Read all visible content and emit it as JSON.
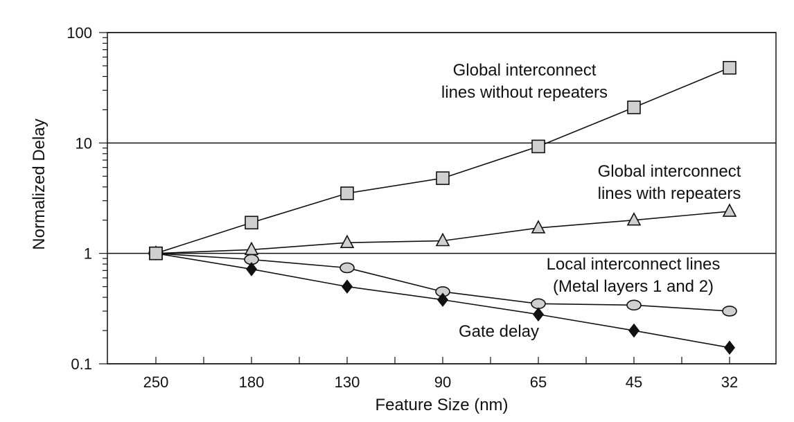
{
  "chart_data": {
    "type": "line",
    "title": "",
    "xlabel": "Feature Size (nm)",
    "ylabel": "Normalized Delay",
    "yscale": "log",
    "ylim": [
      0.1,
      100
    ],
    "grid": "horizontal major gridlines at decades",
    "categories": [
      "250",
      "180",
      "130",
      "90",
      "65",
      "45",
      "32"
    ],
    "y_tick_labels": [
      "0.1",
      "1",
      "10",
      "100"
    ],
    "series": [
      {
        "name": "Global interconnect lines without repeaters",
        "marker": "square",
        "color": "#d0d0d0",
        "values": [
          1,
          1.9,
          3.5,
          4.8,
          9.3,
          21,
          48
        ]
      },
      {
        "name": "Global interconnect lines with repeaters",
        "marker": "triangle",
        "color": "#d0d0d0",
        "values": [
          1,
          1.08,
          1.25,
          1.3,
          1.7,
          2.0,
          2.4
        ]
      },
      {
        "name": "Local interconnect lines (Metal layers 1 and 2)",
        "marker": "ellipse",
        "color": "#d0d0d0",
        "values": [
          1,
          0.88,
          0.74,
          0.45,
          0.35,
          0.34,
          0.3
        ]
      },
      {
        "name": "Gate delay",
        "marker": "diamond",
        "color": "#111111",
        "values": [
          1,
          0.72,
          0.5,
          0.38,
          0.28,
          0.2,
          0.14
        ]
      }
    ],
    "annotations": [
      {
        "series": 0,
        "lines": [
          "Global interconnect",
          "lines without repeaters"
        ]
      },
      {
        "series": 1,
        "lines": [
          "Global interconnect",
          "lines with repeaters"
        ]
      },
      {
        "series": 2,
        "lines": [
          "Local interconnect lines",
          "(Metal layers 1 and 2)"
        ]
      },
      {
        "series": 3,
        "lines": [
          "Gate delay"
        ]
      }
    ]
  }
}
